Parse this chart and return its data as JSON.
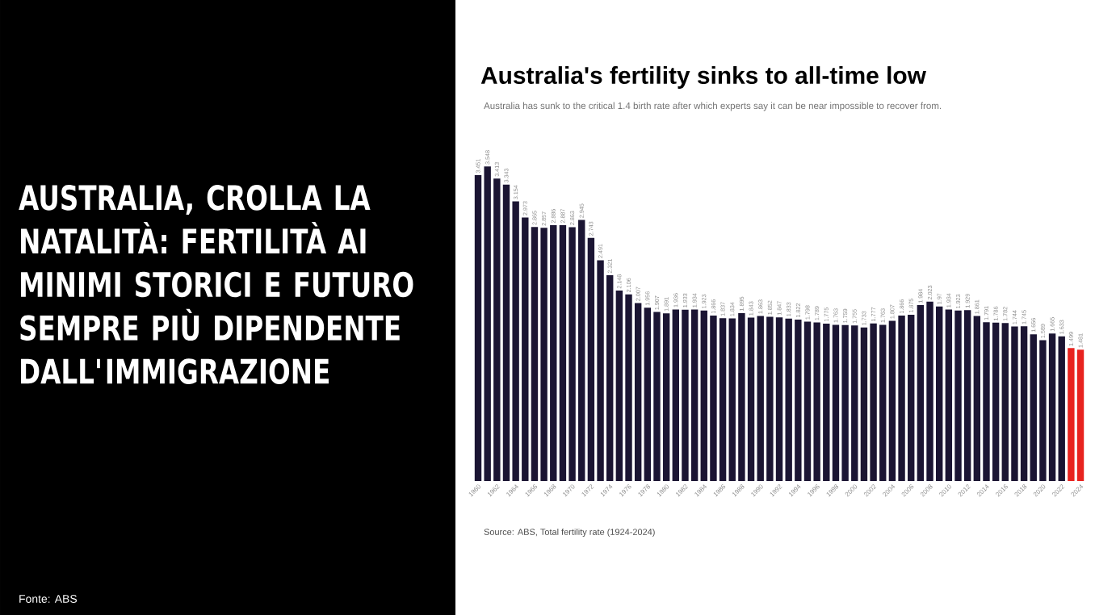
{
  "chart_data": {
    "type": "bar",
    "title": "Australia's fertility sinks to all-time low",
    "subtitle": "Australia has sunk to the critical 1.4 birth rate after which experts say it can be near impossible to recover from.",
    "annotations": [
      "AUSTRALIA, CROLLA LA NATALITÀ: FERTILITÀ AI MINIMI STORICI E FUTURO SEMPRE PIÙ DIPENDENTE DALL'IMMIGRAZIONE",
      "Fonte: ABS",
      "Source: ABS, Total fertility rate (1924-2024)"
    ],
    "categories": [
      "1960",
      null,
      "1962",
      null,
      "1964",
      null,
      "1966",
      null,
      "1968",
      null,
      "1970",
      null,
      "1972",
      null,
      "1974",
      null,
      "1976",
      null,
      "1978",
      null,
      "1980",
      null,
      "1982",
      null,
      "1984",
      null,
      "1986",
      null,
      "1988",
      null,
      "1990",
      null,
      "1992",
      null,
      "1994",
      null,
      "1996",
      null,
      "1998",
      null,
      "2000",
      null,
      "2002",
      null,
      "2004",
      null,
      "2006",
      null,
      "2008",
      null,
      "2010",
      null,
      "2012",
      null,
      "2014",
      null,
      "2016",
      null,
      "2018",
      null,
      "2020",
      null,
      "2022",
      null,
      "2024"
    ],
    "values": [
      3.451,
      3.548,
      3.413,
      3.343,
      3.154,
      2.973,
      2.865,
      2.857,
      2.886,
      2.887,
      2.863,
      2.945,
      2.743,
      2.491,
      2.321,
      2.148,
      2.106,
      2.007,
      1.956,
      1.907,
      1.891,
      1.936,
      1.933,
      1.934,
      1.923,
      1.866,
      1.837,
      1.834,
      1.895,
      1.843,
      1.863,
      1.852,
      1.847,
      1.833,
      1.822,
      1.798,
      1.789,
      1.775,
      1.763,
      1.759,
      1.755,
      1.733,
      1.777,
      1.763,
      1.807,
      1.866,
      1.875,
      1.984,
      2.023,
      1.97,
      1.934,
      1.923,
      1.929,
      1.861,
      1.791,
      1.786,
      1.782,
      1.744,
      1.745,
      1.656,
      1.589,
      1.665,
      1.633,
      1.499,
      1.481
    ],
    "colors": [
      "#1b1533",
      "#1b1533",
      "#1b1533",
      "#1b1533",
      "#1b1533",
      "#1b1533",
      "#1b1533",
      "#1b1533",
      "#1b1533",
      "#1b1533",
      "#1b1533",
      "#1b1533",
      "#1b1533",
      "#1b1533",
      "#1b1533",
      "#1b1533",
      "#1b1533",
      "#1b1533",
      "#1b1533",
      "#1b1533",
      "#1b1533",
      "#1b1533",
      "#1b1533",
      "#1b1533",
      "#1b1533",
      "#1b1533",
      "#1b1533",
      "#1b1533",
      "#1b1533",
      "#1b1533",
      "#1b1533",
      "#1b1533",
      "#1b1533",
      "#1b1533",
      "#1b1533",
      "#1b1533",
      "#1b1533",
      "#1b1533",
      "#1b1533",
      "#1b1533",
      "#1b1533",
      "#1b1533",
      "#1b1533",
      "#1b1533",
      "#1b1533",
      "#1b1533",
      "#1b1533",
      "#1b1533",
      "#1b1533",
      "#1b1533",
      "#1b1533",
      "#1b1533",
      "#1b1533",
      "#1b1533",
      "#1b1533",
      "#1b1533",
      "#1b1533",
      "#1b1533",
      "#1b1533",
      "#1b1533",
      "#1b1533",
      "#1b1533",
      "#1b1533",
      "#e8231f",
      "#e8231f"
    ],
    "data_labels": true,
    "tick_labels": "x"
  }
}
